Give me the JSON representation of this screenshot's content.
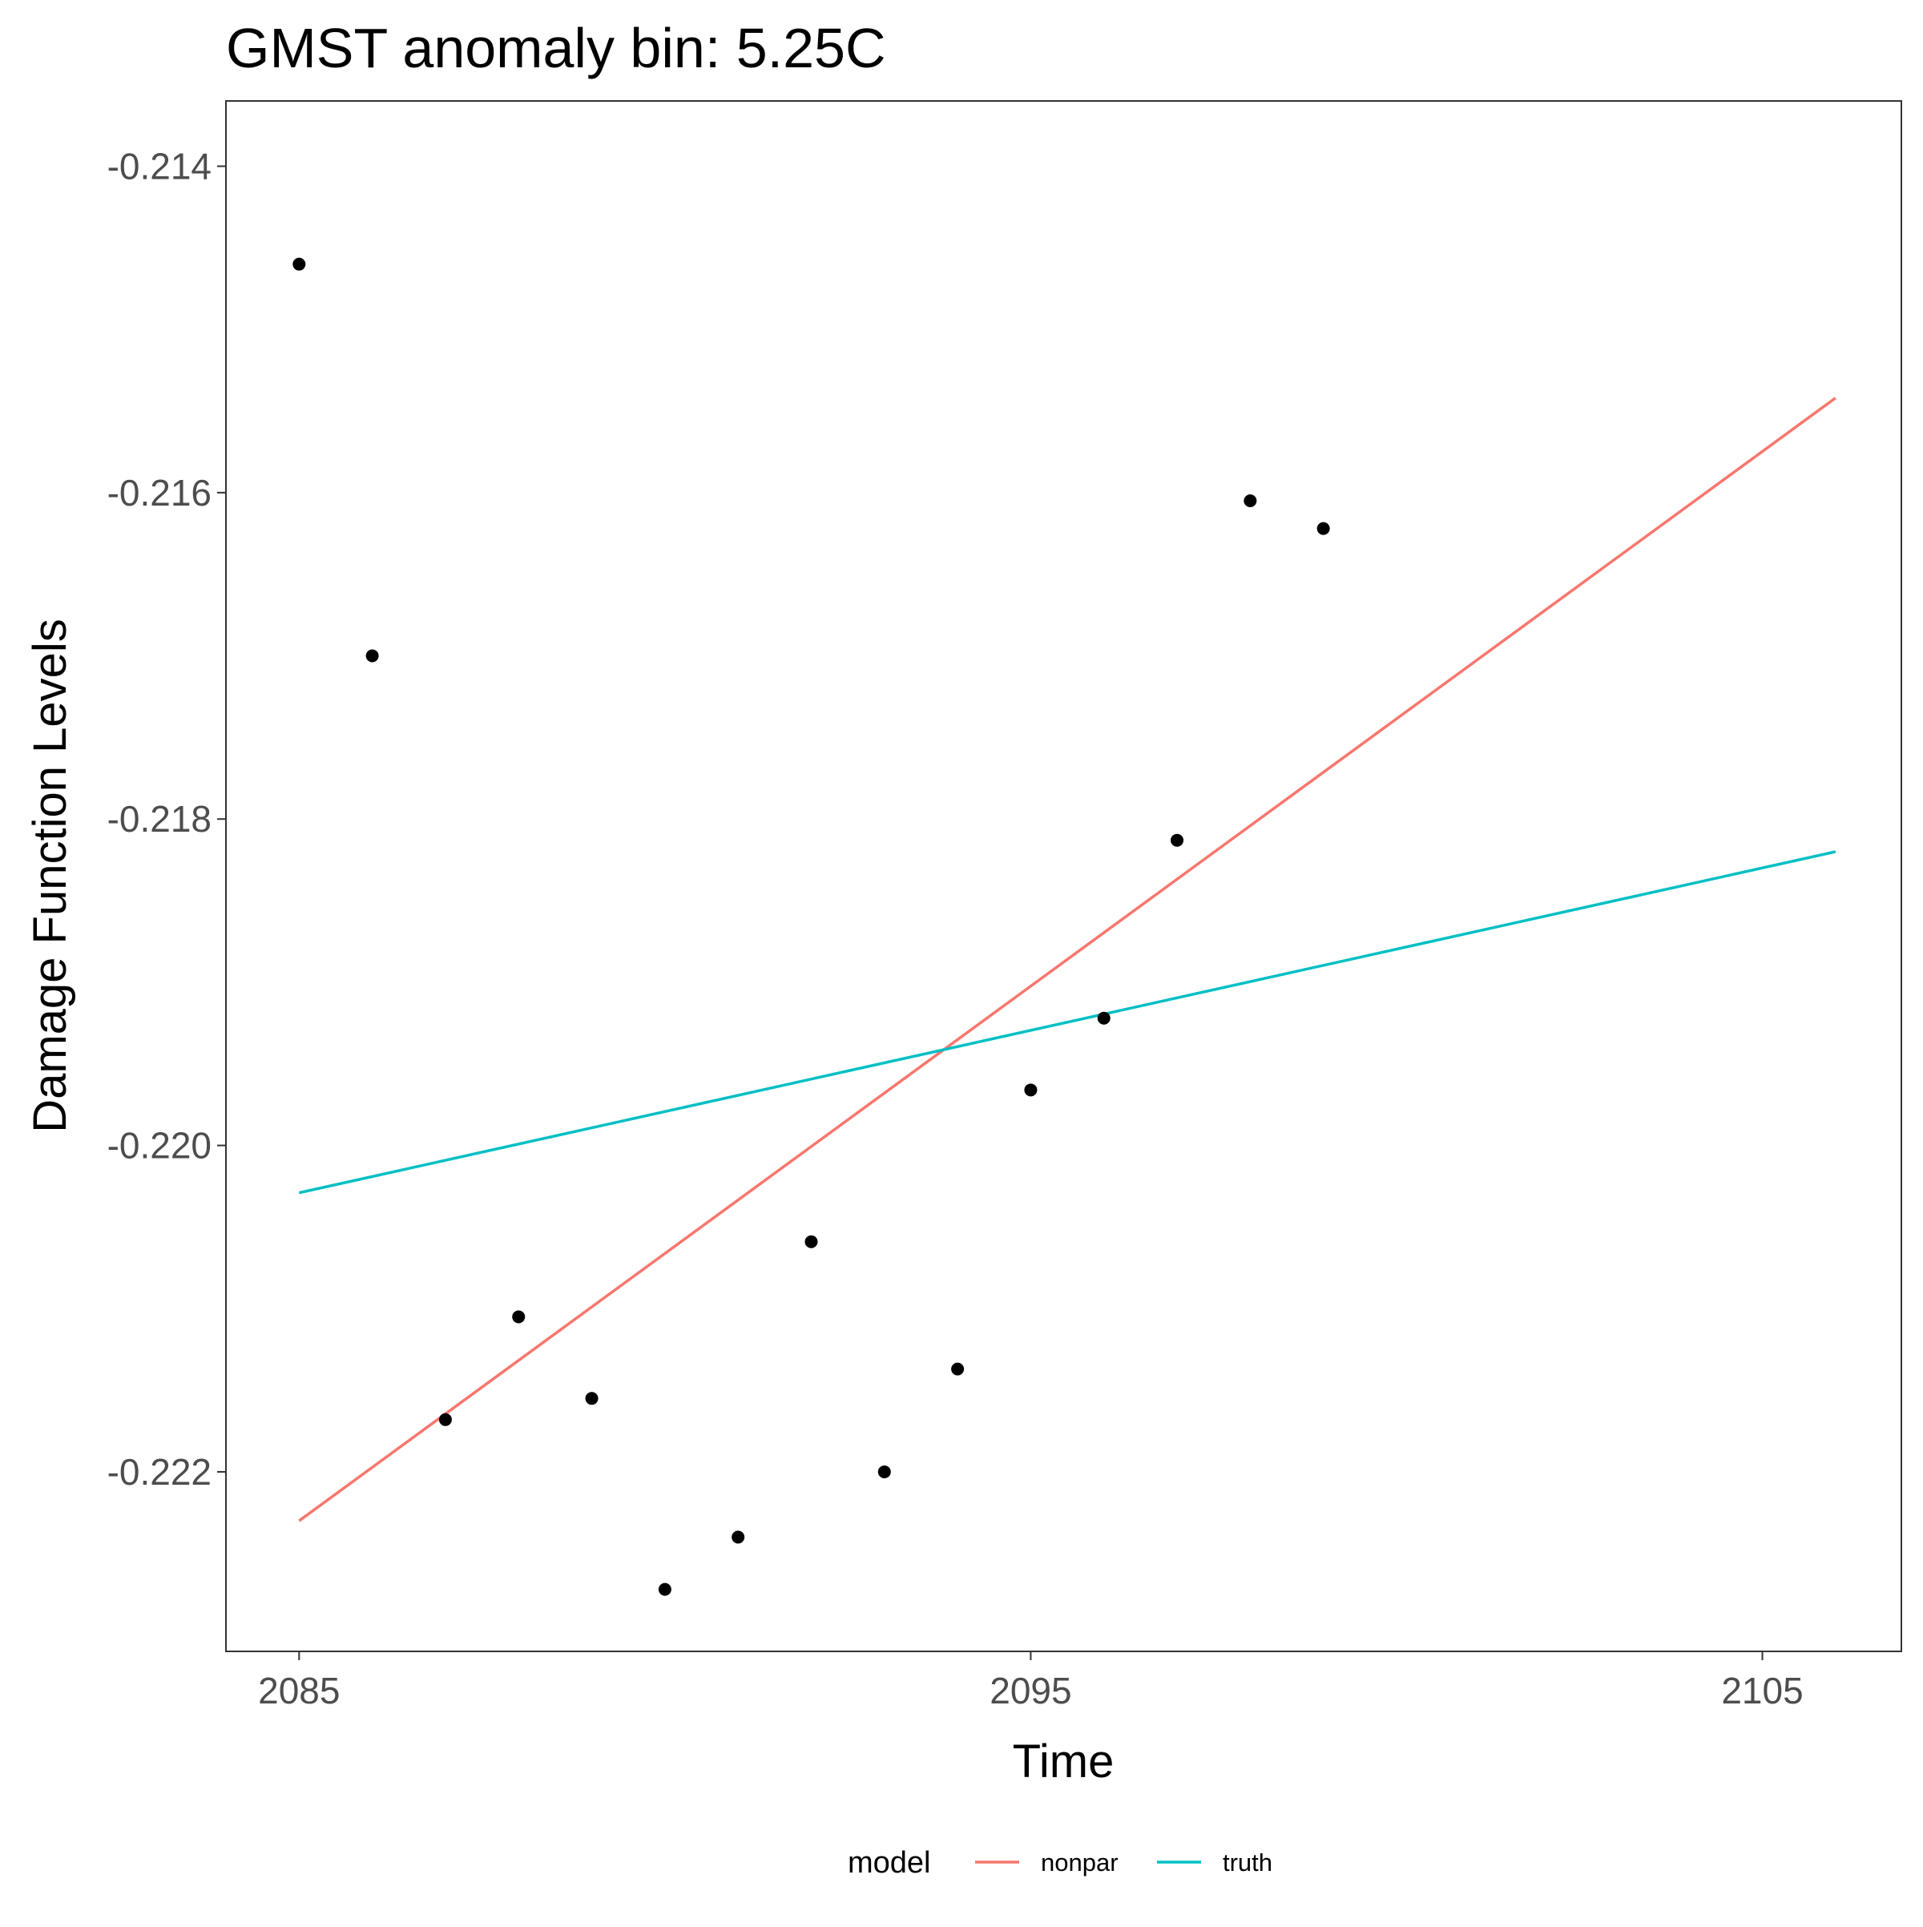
{
  "chart_data": {
    "type": "scatter",
    "title": "GMST anomaly bin: 5.25C",
    "xlabel": "Time",
    "ylabel": "Damage Function Levels",
    "xlim": [
      2084,
      2106.9
    ],
    "ylim": [
      -0.2231,
      -0.2136
    ],
    "x_ticks": [
      2085,
      2095,
      2105
    ],
    "x_tick_labels": [
      "2085",
      "2095",
      "2105"
    ],
    "y_ticks": [
      -0.214,
      -0.216,
      -0.218,
      -0.22,
      -0.222
    ],
    "y_tick_labels": [
      "-0.214",
      "-0.216",
      "-0.218",
      "-0.220",
      "-0.222"
    ],
    "grid": false,
    "points": {
      "x": [
        2085,
        2086,
        2087,
        2088,
        2089,
        2090,
        2091,
        2092,
        2093,
        2094,
        2095,
        2096,
        2097,
        2098,
        2099
      ],
      "y": [
        -0.2146,
        -0.217,
        -0.22168,
        -0.22105,
        -0.22155,
        -0.22272,
        -0.2224,
        -0.22059,
        -0.222,
        -0.22137,
        -0.21966,
        -0.21922,
        -0.21813,
        -0.21605,
        -0.21622
      ]
    },
    "series": [
      {
        "name": "nonpar",
        "color": "#F8766D",
        "x": [
          2085,
          2106
        ],
        "y": [
          -0.2223,
          -0.21542
        ]
      },
      {
        "name": "truth",
        "color": "#00BFC4",
        "x": [
          2085,
          2106
        ],
        "y": [
          -0.22029,
          -0.2182
        ]
      }
    ],
    "legend": {
      "title": "model",
      "position": "bottom",
      "entries": [
        "nonpar",
        "truth"
      ]
    }
  }
}
